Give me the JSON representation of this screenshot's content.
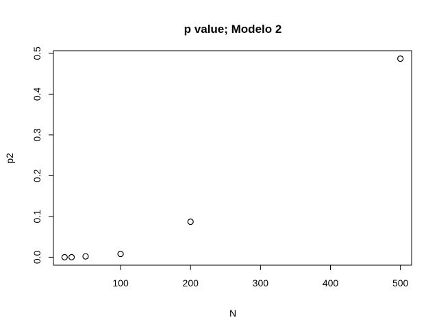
{
  "chart_data": {
    "type": "scatter",
    "title": "p value; Modelo 2",
    "xlabel": "N",
    "ylabel": "p2",
    "x": [
      20,
      30,
      50,
      100,
      200,
      500
    ],
    "y": [
      0.0,
      0.0,
      0.002,
      0.008,
      0.087,
      0.487
    ],
    "xlim": [
      4,
      516
    ],
    "ylim": [
      -0.0195,
      0.5065
    ],
    "x_ticks": [
      100,
      200,
      300,
      400,
      500
    ],
    "x_tick_labels": [
      "100",
      "200",
      "300",
      "400",
      "500"
    ],
    "y_ticks": [
      0.0,
      0.1,
      0.2,
      0.3,
      0.4,
      0.5
    ],
    "y_tick_labels": [
      "0.0",
      "0.1",
      "0.2",
      "0.3",
      "0.4",
      "0.5"
    ],
    "grid": false,
    "marker": "open-circle",
    "colors": {
      "background": "#ffffff",
      "foreground": "#000000"
    }
  }
}
